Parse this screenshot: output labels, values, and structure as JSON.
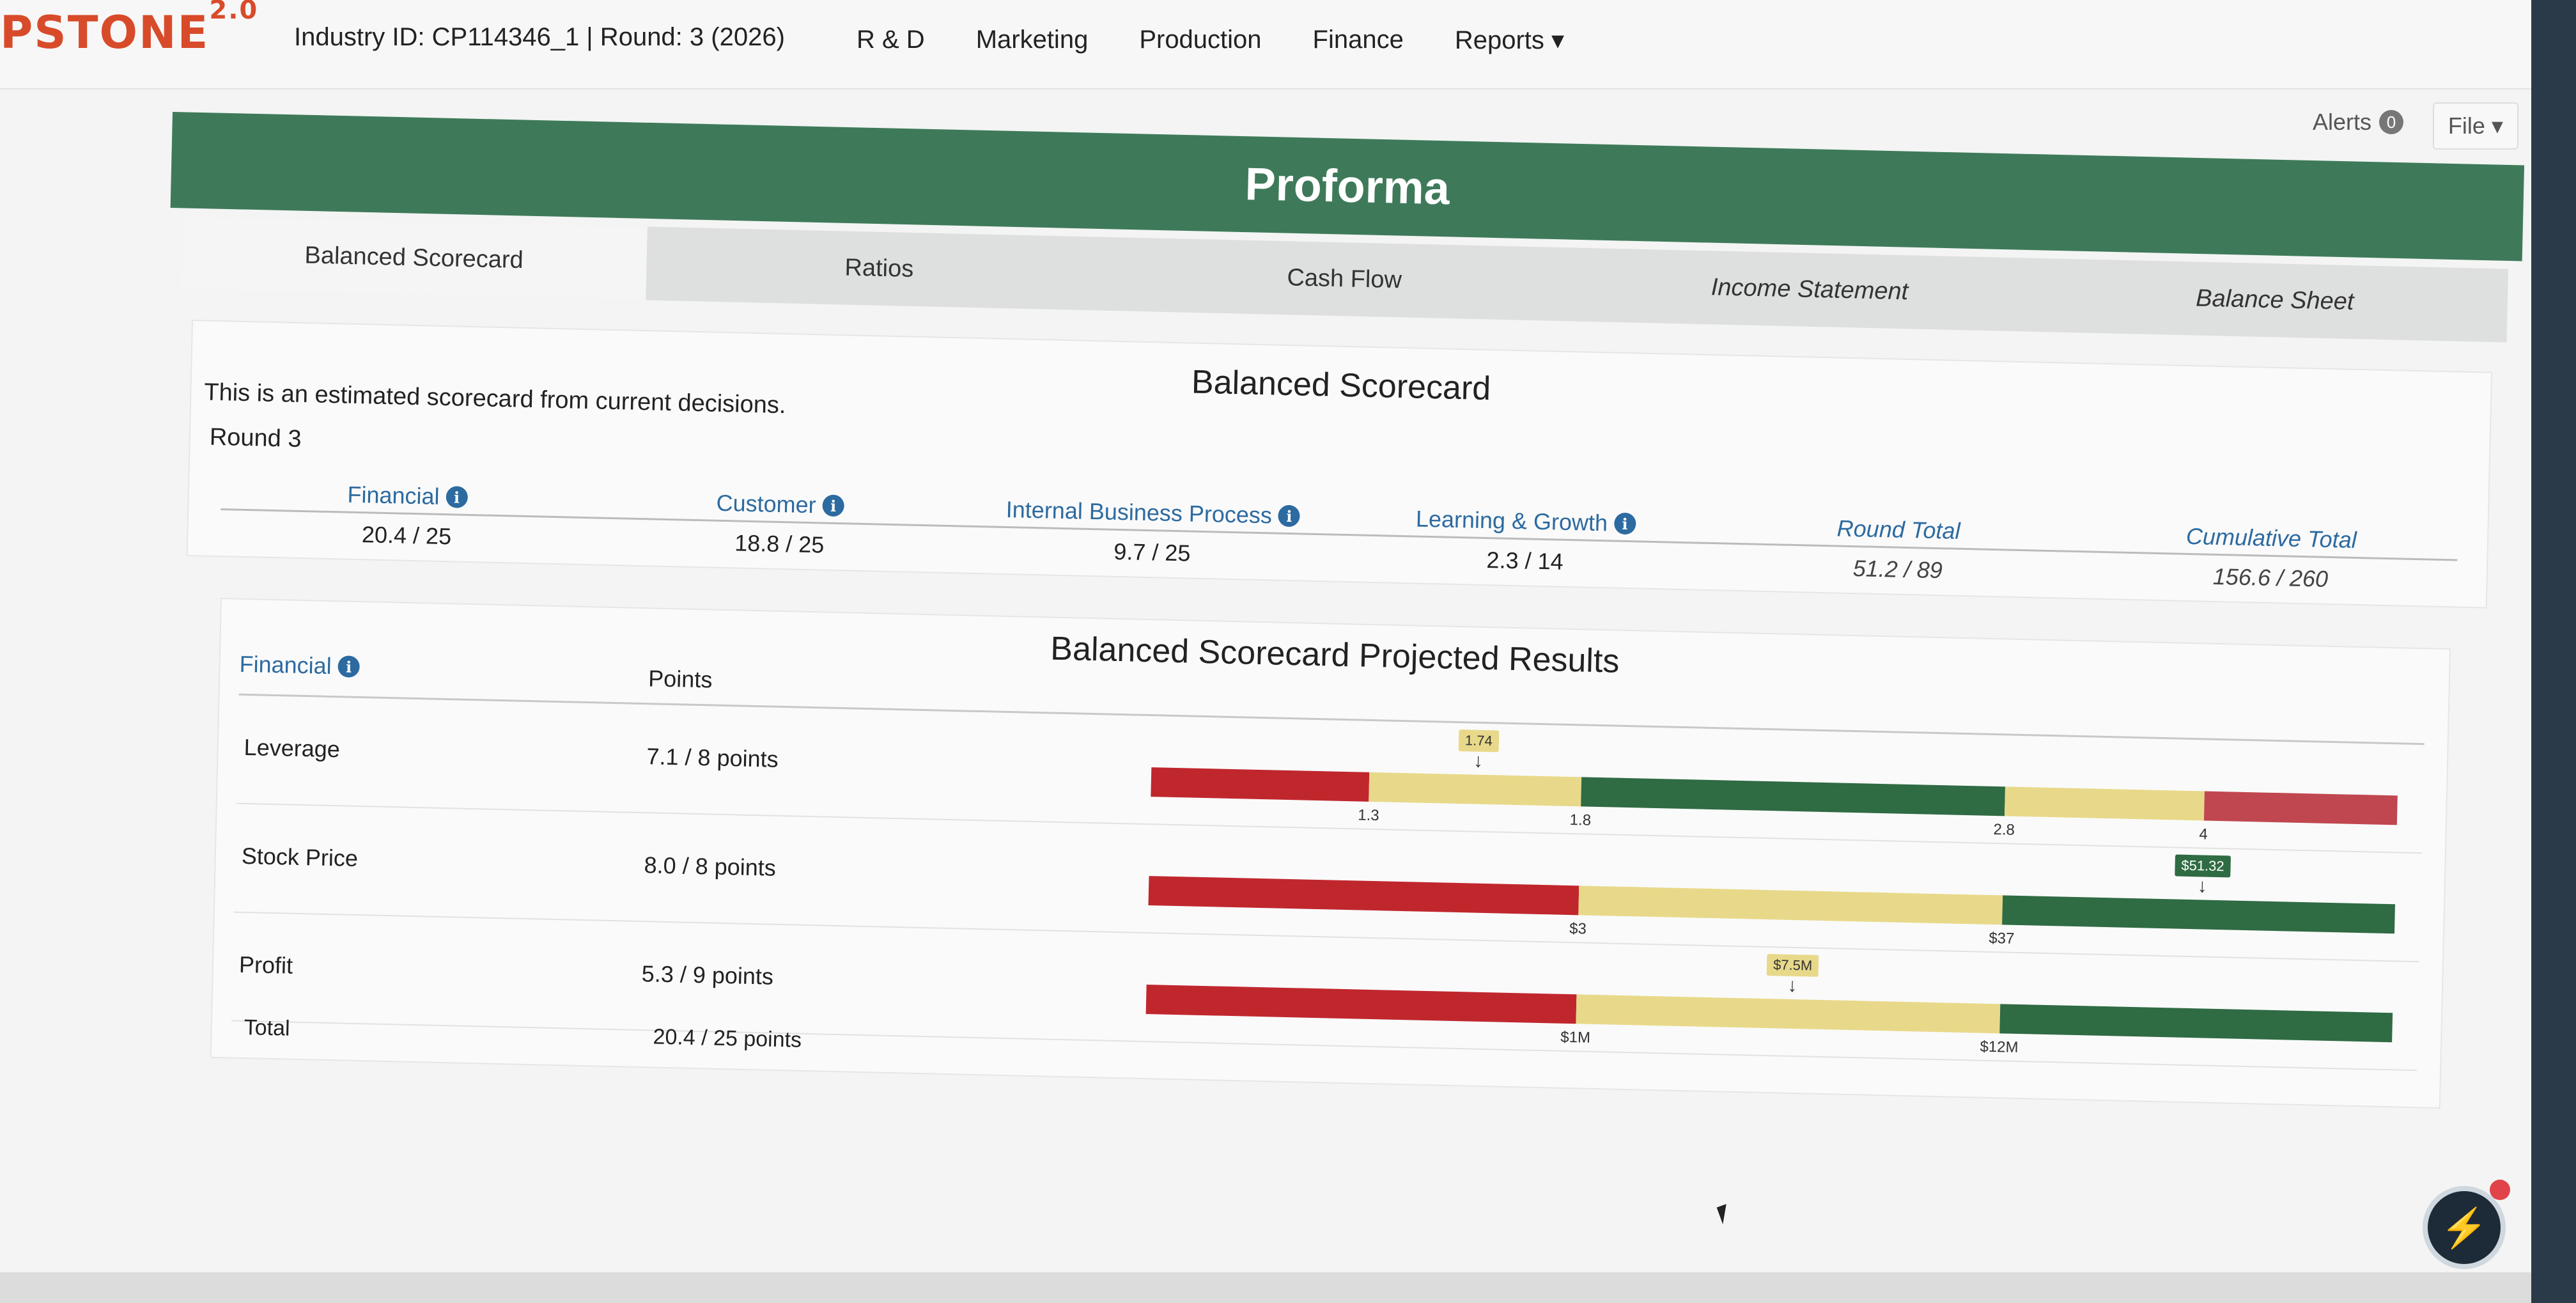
{
  "app": {
    "logo": "PSTONE",
    "logo_version": "2.0",
    "industry_info": "Industry ID: CP114346_1 |  Round: 3 (2026)"
  },
  "nav": {
    "items": [
      "R & D",
      "Marketing",
      "Production",
      "Finance",
      "Reports ▾"
    ]
  },
  "header": {
    "alerts_label": "Alerts",
    "alerts_count": "0",
    "file_label": "File ▾"
  },
  "banner": {
    "title": "Proforma"
  },
  "tabs": [
    "Balanced Scorecard",
    "Ratios",
    "Cash Flow",
    "Income Statement",
    "Balance Sheet"
  ],
  "scorecard": {
    "title": "Balanced Scorecard",
    "note": "This is an estimated scorecard from current decisions.",
    "round_label": "Round 3",
    "columns": [
      {
        "label": "Financial",
        "value": "20.4 / 25",
        "info": true
      },
      {
        "label": "Customer",
        "value": "18.8 / 25",
        "info": true
      },
      {
        "label": "Internal Business Process",
        "value": "9.7 / 25",
        "info": true
      },
      {
        "label": "Learning & Growth",
        "value": "2.3 / 14",
        "info": true
      },
      {
        "label": "Round Total",
        "value": "51.2 / 89",
        "info": false
      },
      {
        "label": "Cumulative Total",
        "value": "156.6 / 260",
        "info": false
      }
    ]
  },
  "projected": {
    "title": "Balanced Scorecard Projected Results",
    "header_category": "Financial",
    "header_points": "Points",
    "rows": [
      {
        "label": "Leverage",
        "points": "7.1 / 8 points",
        "segments": [
          {
            "frac": 0.175,
            "color": "#c0272d"
          },
          {
            "frac": 0.17,
            "color": "#e8d98a"
          },
          {
            "frac": 0.34,
            "color": "#2f6b43"
          },
          {
            "frac": 0.16,
            "color": "#e8d98a"
          },
          {
            "frac": 0.155,
            "color": "#c0474f"
          }
        ],
        "ticks": [
          {
            "label": "1.3",
            "pos": 0.175
          },
          {
            "label": "1.8",
            "pos": 0.345
          },
          {
            "label": "2.8",
            "pos": 0.685
          },
          {
            "label": "4",
            "pos": 0.845
          }
        ],
        "marker": {
          "label": "1.74",
          "pos": 0.262,
          "color": "#e8d98a"
        }
      },
      {
        "label": "Stock Price",
        "points": "8.0 / 8 points",
        "segments": [
          {
            "frac": 0.345,
            "color": "#c0272d"
          },
          {
            "frac": 0.34,
            "color": "#e8d98a"
          },
          {
            "frac": 0.315,
            "color": "#2f6b43"
          }
        ],
        "ticks": [
          {
            "label": "$3",
            "pos": 0.345
          },
          {
            "label": "$37",
            "pos": 0.685
          }
        ],
        "marker": {
          "label": "$51.32",
          "pos": 0.845,
          "color": "#2f6b43"
        }
      },
      {
        "label": "Profit",
        "points": "5.3 / 9 points",
        "segments": [
          {
            "frac": 0.345,
            "color": "#c0272d"
          },
          {
            "frac": 0.34,
            "color": "#e8d98a"
          },
          {
            "frac": 0.315,
            "color": "#2f6b43"
          }
        ],
        "ticks": [
          {
            "label": "$1M",
            "pos": 0.345
          },
          {
            "label": "$12M",
            "pos": 0.685
          }
        ],
        "marker": {
          "label": "$7.5M",
          "pos": 0.518,
          "color": "#e8d98a"
        }
      }
    ],
    "total_label": "Total",
    "total_points": "20.4 / 25 points"
  }
}
